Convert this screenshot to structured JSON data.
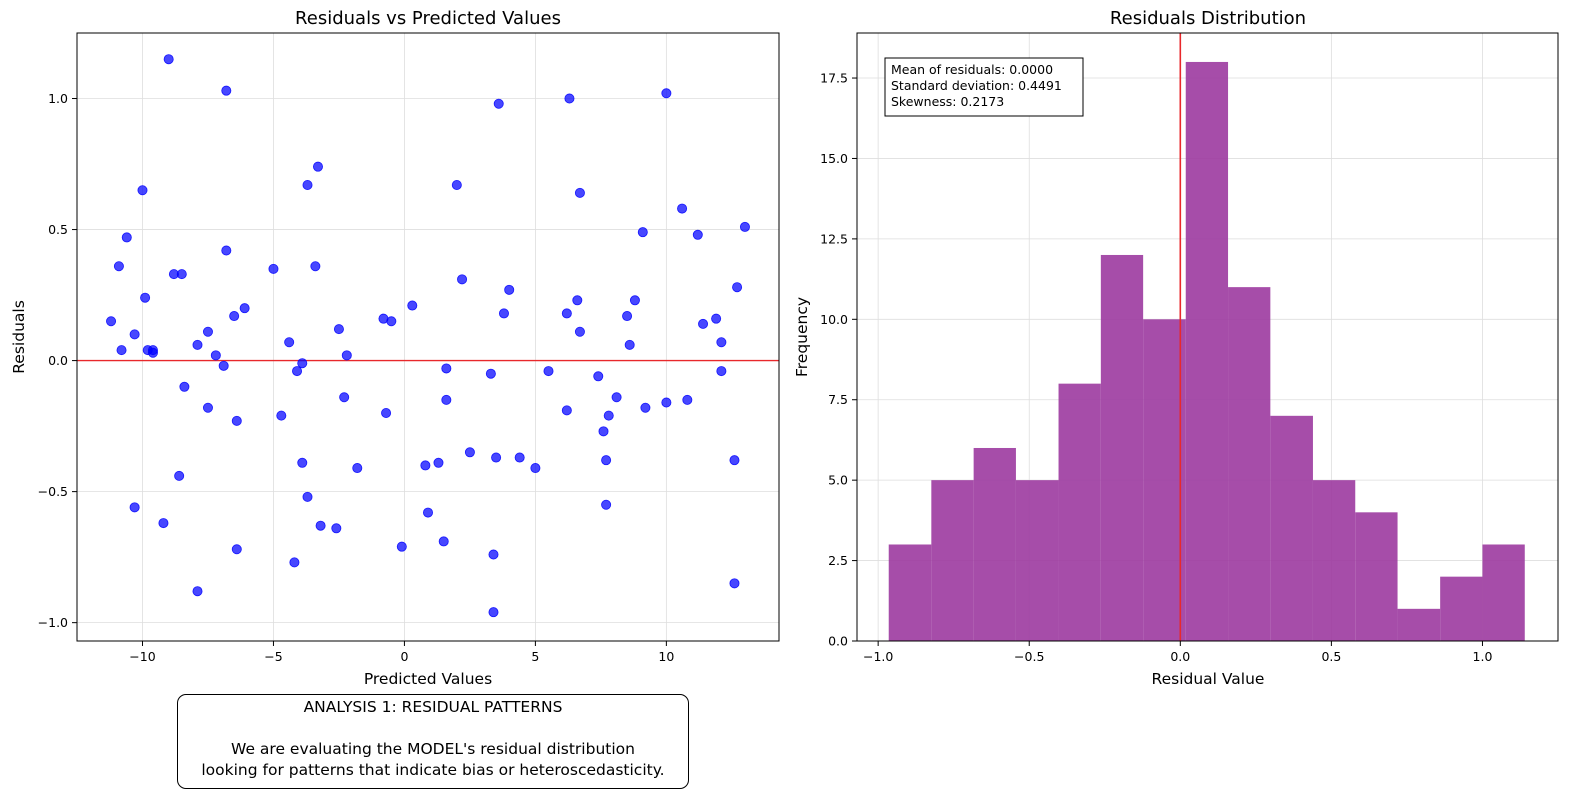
{
  "chart_data": [
    {
      "type": "scatter",
      "title": "Residuals vs Predicted Values",
      "xlabel": "Predicted Values",
      "ylabel": "Residuals",
      "xlim": [
        -12.5,
        14.3
      ],
      "ylim": [
        -1.07,
        1.25
      ],
      "x_ticks": [
        -10,
        -5,
        0,
        5,
        10
      ],
      "y_ticks": [
        -1.0,
        -0.5,
        0.0,
        0.5,
        1.0
      ],
      "x_tick_labels": [
        "−10",
        "−5",
        "0",
        "5",
        "10"
      ],
      "y_tick_labels": [
        "−1.0",
        "−0.5",
        "0.0",
        "0.5",
        "1.0"
      ],
      "grid": true,
      "reference_line": {
        "y": 0,
        "color": "#e8282b"
      },
      "marker_color": "#0000ff",
      "points": [
        [
          -11.2,
          0.15
        ],
        [
          -10.8,
          0.04
        ],
        [
          -10.9,
          0.36
        ],
        [
          -10.6,
          0.47
        ],
        [
          -10.3,
          0.1
        ],
        [
          -10.3,
          -0.56
        ],
        [
          -10.0,
          0.65
        ],
        [
          -9.9,
          0.24
        ],
        [
          -9.8,
          0.04
        ],
        [
          -9.6,
          0.04
        ],
        [
          -9.6,
          0.03
        ],
        [
          -9.2,
          -0.62
        ],
        [
          -9.0,
          1.15
        ],
        [
          -8.8,
          0.33
        ],
        [
          -8.6,
          -0.44
        ],
        [
          -8.5,
          0.33
        ],
        [
          -8.4,
          -0.1
        ],
        [
          -7.9,
          0.06
        ],
        [
          -7.9,
          -0.88
        ],
        [
          -7.5,
          0.11
        ],
        [
          -7.5,
          -0.18
        ],
        [
          -7.2,
          0.02
        ],
        [
          -6.9,
          -0.02
        ],
        [
          -6.8,
          0.42
        ],
        [
          -6.8,
          1.03
        ],
        [
          -6.5,
          0.17
        ],
        [
          -6.4,
          -0.23
        ],
        [
          -6.4,
          -0.72
        ],
        [
          -6.1,
          0.2
        ],
        [
          -5.0,
          0.35
        ],
        [
          -4.7,
          -0.21
        ],
        [
          -4.4,
          0.07
        ],
        [
          -4.2,
          -0.77
        ],
        [
          -4.1,
          -0.04
        ],
        [
          -3.9,
          -0.01
        ],
        [
          -3.9,
          -0.39
        ],
        [
          -3.7,
          -0.52
        ],
        [
          -3.7,
          0.67
        ],
        [
          -3.4,
          0.36
        ],
        [
          -3.3,
          0.74
        ],
        [
          -3.2,
          -0.63
        ],
        [
          -2.6,
          -0.64
        ],
        [
          -2.5,
          0.12
        ],
        [
          -2.3,
          -0.14
        ],
        [
          -2.2,
          0.02
        ],
        [
          -1.8,
          -0.41
        ],
        [
          -0.8,
          0.16
        ],
        [
          -0.7,
          -0.2
        ],
        [
          -0.5,
          0.15
        ],
        [
          -0.1,
          -0.71
        ],
        [
          0.3,
          0.21
        ],
        [
          0.8,
          -0.4
        ],
        [
          0.9,
          -0.58
        ],
        [
          1.3,
          -0.39
        ],
        [
          1.5,
          -0.69
        ],
        [
          1.6,
          -0.03
        ],
        [
          1.6,
          -0.15
        ],
        [
          2.0,
          0.67
        ],
        [
          2.2,
          0.31
        ],
        [
          2.5,
          -0.35
        ],
        [
          3.3,
          -0.05
        ],
        [
          3.4,
          -0.74
        ],
        [
          3.4,
          -0.96
        ],
        [
          3.5,
          -0.37
        ],
        [
          3.6,
          0.98
        ],
        [
          3.8,
          0.18
        ],
        [
          4.0,
          0.27
        ],
        [
          4.4,
          -0.37
        ],
        [
          5.0,
          -0.41
        ],
        [
          5.5,
          -0.04
        ],
        [
          6.2,
          0.18
        ],
        [
          6.2,
          -0.19
        ],
        [
          6.3,
          1.0
        ],
        [
          6.6,
          0.23
        ],
        [
          6.7,
          0.64
        ],
        [
          6.7,
          0.11
        ],
        [
          7.4,
          -0.06
        ],
        [
          7.6,
          -0.27
        ],
        [
          7.7,
          -0.38
        ],
        [
          7.7,
          -0.55
        ],
        [
          7.8,
          -0.21
        ],
        [
          8.1,
          -0.14
        ],
        [
          8.5,
          0.17
        ],
        [
          8.6,
          0.06
        ],
        [
          8.8,
          0.23
        ],
        [
          9.1,
          0.49
        ],
        [
          9.2,
          -0.18
        ],
        [
          10.0,
          1.02
        ],
        [
          10.0,
          -0.16
        ],
        [
          10.6,
          0.58
        ],
        [
          10.8,
          -0.15
        ],
        [
          11.2,
          0.48
        ],
        [
          11.4,
          0.14
        ],
        [
          11.9,
          0.16
        ],
        [
          12.1,
          0.07
        ],
        [
          12.1,
          -0.04
        ],
        [
          12.6,
          -0.85
        ],
        [
          12.6,
          -0.38
        ],
        [
          12.7,
          0.28
        ],
        [
          13.0,
          0.51
        ]
      ]
    },
    {
      "type": "bar",
      "title": "Residuals Distribution",
      "xlabel": "Residual Value",
      "ylabel": "Frequency",
      "xlim": [
        -1.07,
        1.25
      ],
      "ylim": [
        0,
        18.9
      ],
      "x_ticks": [
        -1.0,
        -0.5,
        0.0,
        0.5,
        1.0
      ],
      "y_ticks": [
        0.0,
        2.5,
        5.0,
        7.5,
        10.0,
        12.5,
        15.0,
        17.5
      ],
      "x_tick_labels": [
        "−1.0",
        "−0.5",
        "0.0",
        "0.5",
        "1.0"
      ],
      "y_tick_labels": [
        "0.0",
        "2.5",
        "5.0",
        "7.5",
        "10.0",
        "12.5",
        "15.0",
        "17.5"
      ],
      "grid": true,
      "bar_color": "#9c3aa0",
      "reference_line": {
        "x": 0,
        "color": "#e8282b"
      },
      "bin_edges": [
        -0.965,
        -0.824,
        -0.684,
        -0.544,
        -0.403,
        -0.263,
        -0.123,
        0.018,
        0.158,
        0.298,
        0.439,
        0.579,
        0.719,
        0.86,
        1.0,
        1.14
      ],
      "counts": [
        3,
        5,
        6,
        5,
        8,
        12,
        10,
        18,
        11,
        7,
        5,
        4,
        1,
        2,
        3
      ],
      "annotation": [
        "Mean of residuals: 0.0000",
        "Standard deviation: 0.4491",
        "Skewness: 0.2173"
      ]
    }
  ],
  "note": {
    "title": "ANALYSIS 1: RESIDUAL PATTERNS",
    "line1": "We are evaluating the MODEL's residual distribution",
    "line2": "looking for patterns that indicate bias or heteroscedasticity."
  }
}
